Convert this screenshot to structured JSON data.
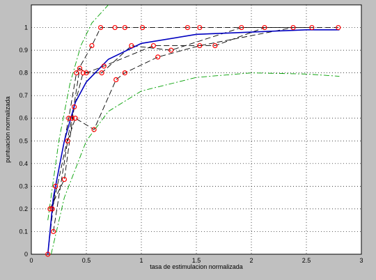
{
  "chart_data": {
    "type": "line",
    "xlabel": "tasa de estimulacion normalizada",
    "ylabel": "puntuacion normalizada",
    "xlim": [
      0,
      3
    ],
    "ylim": [
      0,
      1.1
    ],
    "xticks": [
      0,
      0.5,
      1,
      1.5,
      2,
      2.5,
      3
    ],
    "yticks": [
      0,
      0.1,
      0.2,
      0.3,
      0.4,
      0.5,
      0.6,
      0.7,
      0.8,
      0.9,
      1
    ],
    "grid": true,
    "series": [
      {
        "color": "#000000",
        "style": "dash",
        "x": [
          0.15,
          0.22,
          0.34,
          0.41,
          0.55,
          0.63,
          0.85,
          1.01,
          1.53,
          2.12,
          2.79
        ],
        "values": [
          0,
          0.3,
          0.6,
          0.8,
          0.92,
          1,
          1,
          1,
          1,
          1,
          1
        ]
      },
      {
        "color": "#000000",
        "style": "dash",
        "x": [
          0.17,
          0.3,
          0.39,
          0.47,
          0.64,
          0.91,
          1.27,
          1.91,
          2.55
        ],
        "values": [
          0.2,
          0.33,
          0.65,
          0.8,
          0.8,
          0.92,
          0.9,
          1,
          1
        ]
      },
      {
        "color": "#000000",
        "style": "dash",
        "x": [
          0.2,
          0.33,
          0.4,
          0.57,
          0.77,
          0.85,
          1.15,
          1.53,
          2.38
        ],
        "values": [
          0.1,
          0.5,
          0.6,
          0.55,
          0.77,
          0.8,
          0.87,
          0.92,
          1
        ]
      },
      {
        "color": "#000000",
        "style": "dash",
        "x": [
          0.19,
          0.37,
          0.44,
          0.5,
          0.66,
          1.11,
          1.67,
          2.12
        ],
        "values": [
          0.2,
          0.6,
          0.82,
          0.8,
          0.83,
          0.92,
          0.92,
          1
        ]
      },
      {
        "color": "#00a000",
        "style": "dashdot",
        "x": [
          0.15,
          0.25,
          0.35,
          0.45,
          0.55,
          0.7
        ],
        "values": [
          0.15,
          0.5,
          0.75,
          0.92,
          1.02,
          1.1
        ]
      },
      {
        "color": "#00a000",
        "style": "dashdot",
        "x": [
          0.18,
          0.3,
          0.5,
          0.7,
          1,
          1.5,
          2,
          2.5,
          2.8
        ],
        "values": [
          0,
          0.25,
          0.5,
          0.63,
          0.72,
          0.78,
          0.8,
          0.795,
          0.785
        ]
      },
      {
        "color": "#0000c0",
        "style": "solid",
        "x": [
          0.15,
          0.2,
          0.3,
          0.4,
          0.5,
          0.7,
          1,
          1.5,
          2,
          2.5,
          2.8
        ],
        "values": [
          0,
          0.25,
          0.5,
          0.67,
          0.76,
          0.86,
          0.93,
          0.97,
          0.98,
          0.99,
          0.99
        ]
      },
      {
        "color": "#ff0000",
        "style": "markers",
        "x": [
          0.15,
          0.17,
          0.19,
          0.2,
          0.22,
          0.3,
          0.33,
          0.34,
          0.37,
          0.4,
          0.39,
          0.41,
          0.44,
          0.47,
          0.5,
          0.55,
          0.57,
          0.63,
          0.64,
          0.66,
          0.76,
          0.77,
          0.85,
          0.85,
          0.91,
          1.01,
          1.11,
          1.15,
          1.27,
          1.42,
          1.53,
          1.53,
          1.67,
          1.91,
          2.12,
          2.38,
          2.55,
          2.79
        ],
        "values": [
          0,
          0.2,
          0.2,
          0.1,
          0.3,
          0.33,
          0.5,
          0.6,
          0.6,
          0.6,
          0.65,
          0.8,
          0.82,
          0.8,
          0.8,
          0.92,
          0.55,
          1,
          0.8,
          0.83,
          1,
          0.77,
          0.8,
          1,
          0.92,
          1,
          0.92,
          0.87,
          0.9,
          1,
          1,
          0.92,
          0.92,
          1,
          1,
          1,
          1,
          1
        ]
      }
    ]
  }
}
